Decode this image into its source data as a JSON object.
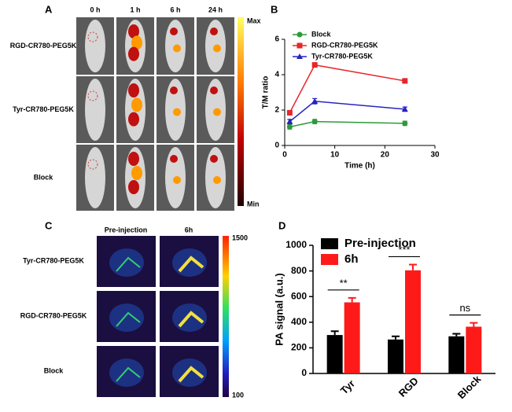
{
  "panels": {
    "A": {
      "label": "A",
      "columns": [
        "0 h",
        "1 h",
        "6 h",
        "24 h"
      ],
      "rows": [
        "RGD-CR780-PEG5K",
        "Tyr-CR780-PEG5K",
        "Block"
      ],
      "colorbar": [
        "Max",
        "Min"
      ]
    },
    "C": {
      "label": "C",
      "columns": [
        "Pre-injection",
        "6h"
      ],
      "rows": [
        "Tyr-CR780-PEG5K",
        "RGD-CR780-PEG5K",
        "Block"
      ],
      "colorbar": [
        "1500",
        "100"
      ]
    }
  },
  "chart_data": [
    {
      "type": "line",
      "panel_label": "B",
      "x_label": "Time (h)",
      "y_label": "T/M ratio",
      "x": [
        1,
        6,
        24
      ],
      "xlim": [
        0,
        30
      ],
      "xticks": [
        0,
        10,
        20,
        30
      ],
      "ylim": [
        0,
        6
      ],
      "yticks": [
        0,
        2,
        4,
        6
      ],
      "series": [
        {
          "name": "Block",
          "color": "#2e9a3a",
          "marker": "circle",
          "values": [
            1.05,
            1.35,
            1.25
          ],
          "errors": [
            0.12,
            0.12,
            0.12
          ]
        },
        {
          "name": "RGD-CR780-PEG5K",
          "color": "#e8262a",
          "marker": "square",
          "values": [
            1.85,
            4.55,
            3.65
          ],
          "errors": [
            0.12,
            0.12,
            0.12
          ]
        },
        {
          "name": "Tyr-CR780-PEG5K",
          "color": "#2525c0",
          "marker": "triangle",
          "values": [
            1.35,
            2.5,
            2.05
          ],
          "errors": [
            0.12,
            0.15,
            0.12
          ]
        }
      ]
    },
    {
      "type": "bar",
      "panel_label": "D",
      "y_label": "PA signal (a.u.)",
      "categories": [
        "Tyr",
        "RGD",
        "Block"
      ],
      "ylim": [
        0,
        1000
      ],
      "yticks": [
        0,
        200,
        400,
        600,
        800,
        1000
      ],
      "significance": [
        "**",
        "***",
        "ns"
      ],
      "series": [
        {
          "name": "Pre-injection",
          "color": "#000000",
          "values": [
            300,
            265,
            290
          ],
          "errors": [
            30,
            25,
            20
          ]
        },
        {
          "name": "6h",
          "color": "#ff1a1a",
          "values": [
            555,
            805,
            365
          ],
          "errors": [
            35,
            45,
            30
          ]
        }
      ]
    }
  ]
}
